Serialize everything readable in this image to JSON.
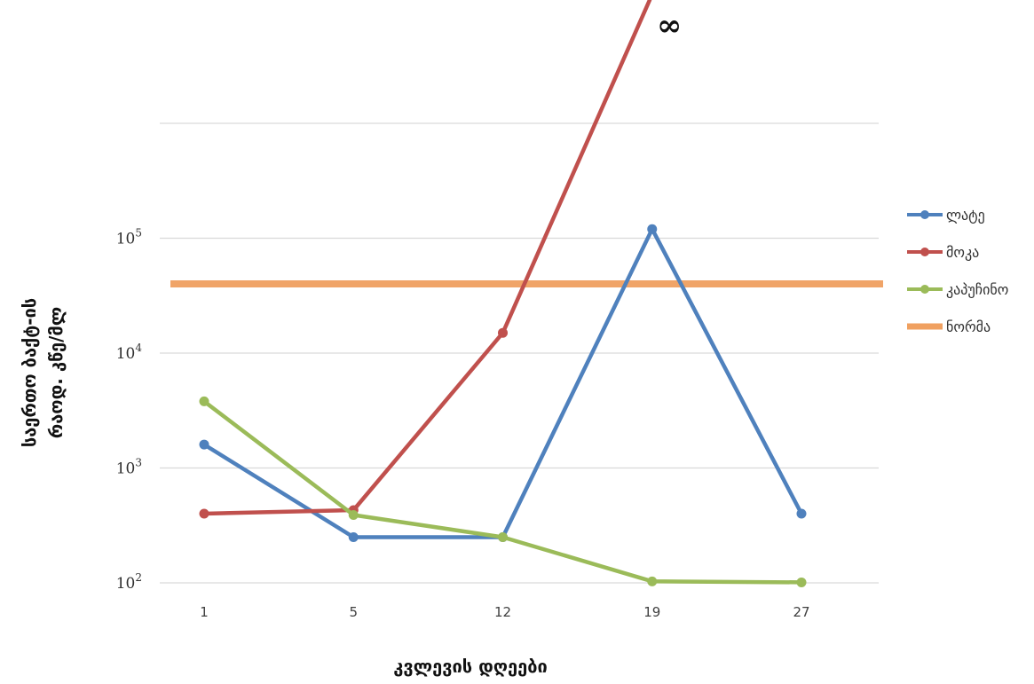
{
  "chart_data": {
    "type": "line",
    "title": "",
    "xlabel": "კვლევის დღეები",
    "ylabel": [
      "საერთო ბაქტ-ის",
      "რაოდ. კწე/მლ"
    ],
    "y_scale": "log",
    "ylim": [
      100,
      300000
    ],
    "categories": [
      "1",
      "5",
      "12",
      "19",
      "27"
    ],
    "y_ticks": [
      {
        "value": 100,
        "base": "10",
        "exp": "2"
      },
      {
        "value": 1000,
        "base": "10",
        "exp": "3"
      },
      {
        "value": 10000,
        "base": "10",
        "exp": "4"
      },
      {
        "value": 100000,
        "base": "10",
        "exp": "5"
      }
    ],
    "grid": true,
    "legend_position": "right",
    "series": [
      {
        "name": "ლატე",
        "color": "#4f81bd",
        "values": [
          1600,
          250,
          250,
          120000,
          400
        ]
      },
      {
        "name": "მოკა",
        "color": "#c0504d",
        "values": [
          400,
          430,
          15000,
          null,
          null
        ],
        "continues_to_infinity": true
      },
      {
        "name": "კაპუჩინო",
        "color": "#9bbb59",
        "values": [
          3800,
          390,
          250,
          103,
          101
        ]
      }
    ],
    "reference_line": {
      "name": "ნორმა",
      "color": "#f0a060",
      "value": 40000
    },
    "annotations": [
      {
        "text": "∞",
        "near": "მოკა line end"
      }
    ]
  }
}
